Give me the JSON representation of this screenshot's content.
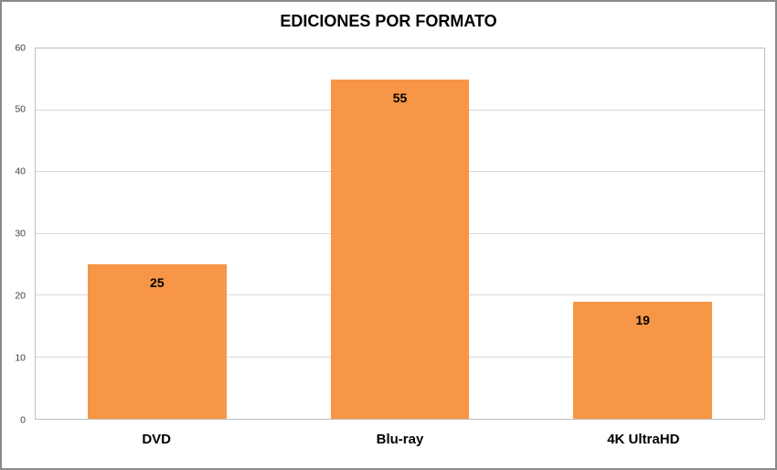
{
  "chart_data": {
    "type": "bar",
    "title": "EDICIONES POR FORMATO",
    "categories": [
      "DVD",
      "Blu-ray",
      "4K UltraHD"
    ],
    "values": [
      25,
      55,
      19
    ],
    "xlabel": "",
    "ylabel": "",
    "ylim": [
      0,
      60
    ],
    "yticks": [
      0,
      10,
      20,
      30,
      40,
      50,
      60
    ],
    "grid": true,
    "legend": "none",
    "data_labels_position": "inside-top",
    "bar_slot_fraction": 0.57,
    "colors": {
      "bar": "#f79646",
      "gridline": "#d9d9d9",
      "plot_border": "#bfbfbf",
      "frame_border": "#8a8a8a",
      "title_text": "#000000",
      "tick_text": "#404040",
      "label_text": "#000000",
      "background": "#ffffff"
    }
  }
}
